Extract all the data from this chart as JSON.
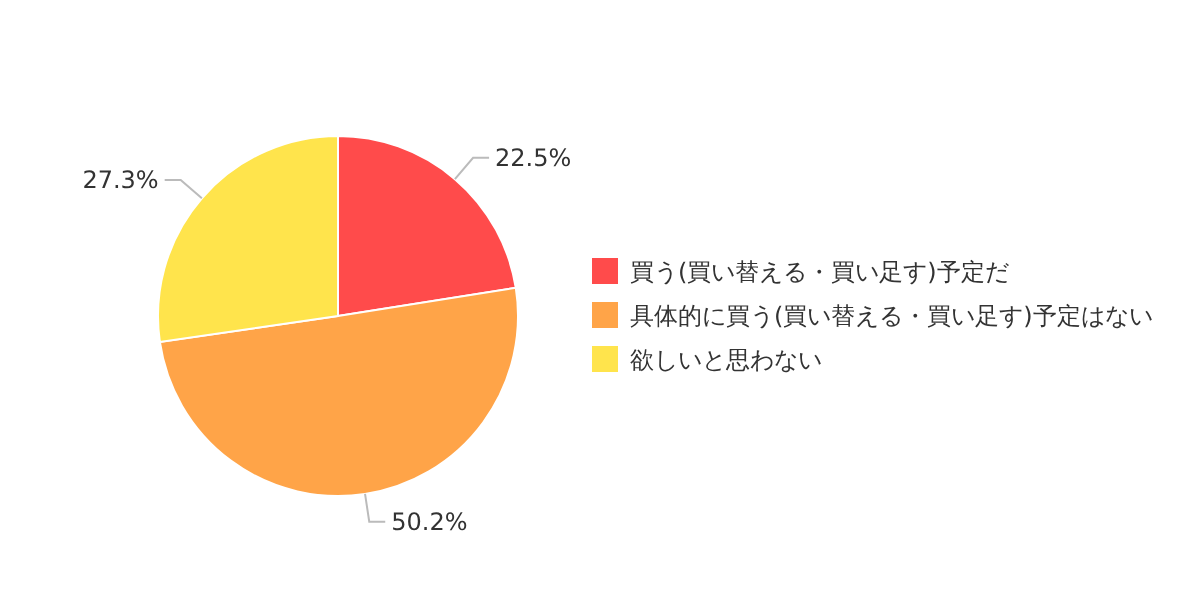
{
  "chart_data": {
    "type": "pie",
    "categories": [
      "買う(買い替える・買い足す)予定だ",
      "具体的に買う(買い替える・買い足す)予定はない",
      "欲しいと思わない"
    ],
    "values": [
      22.5,
      50.2,
      27.3
    ],
    "colors": [
      "#ff4b4b",
      "#ffa448",
      "#ffe44c"
    ],
    "value_labels": [
      "22.5%",
      "50.2%",
      "27.3%"
    ],
    "legend": "right"
  }
}
